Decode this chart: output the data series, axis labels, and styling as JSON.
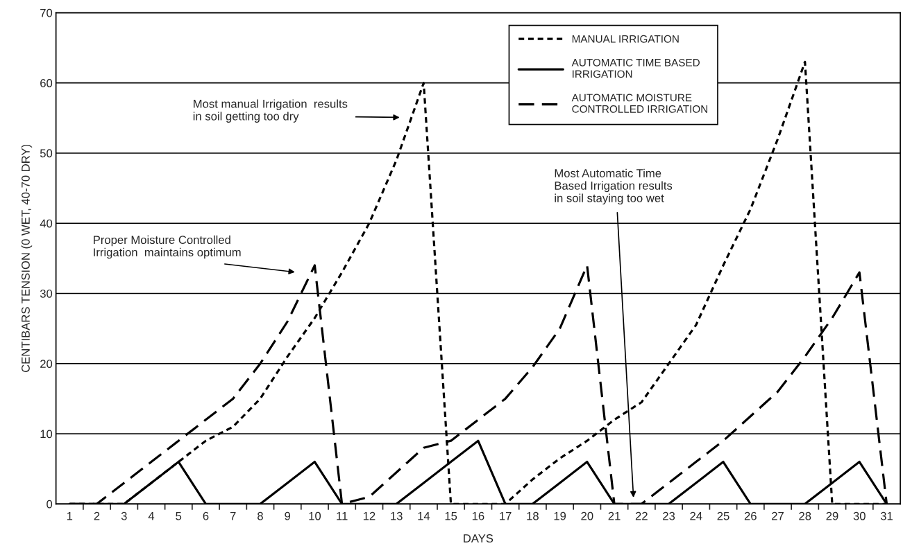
{
  "chart_data": {
    "type": "line",
    "xlabel": "DAYS",
    "ylabel": "CENTIBARS TENSION (0 WET, 40-70 DRY)",
    "categories": [
      "1",
      "2",
      "3",
      "4",
      "5",
      "6",
      "7",
      "8",
      "9",
      "10",
      "11",
      "12",
      "13",
      "14",
      "15",
      "16",
      "17",
      "18",
      "19",
      "20",
      "21",
      "22",
      "23",
      "24",
      "25",
      "26",
      "27",
      "28",
      "29",
      "30",
      "31"
    ],
    "series": [
      {
        "name": "MANUAL IRRIGATION",
        "color": "#000000",
        "line_style": "dotted",
        "values": [
          0,
          0,
          0,
          3,
          6,
          9,
          11,
          15,
          21,
          26.5,
          33,
          40,
          49,
          60,
          0,
          0,
          0,
          3.5,
          6.5,
          9,
          12,
          14.5,
          20,
          25.5,
          34,
          42,
          52,
          63,
          0,
          0,
          0
        ]
      },
      {
        "name": "AUTOMATIC TIME BASED\nIRRIGATION",
        "color": "#000000",
        "line_style": "solid",
        "values": [
          0,
          0,
          0,
          3,
          6,
          0,
          0,
          0,
          3,
          6,
          0,
          0,
          0,
          3,
          6,
          9,
          0,
          0,
          3,
          6,
          0,
          0,
          0,
          3,
          6,
          0,
          0,
          0,
          3,
          6,
          0
        ]
      },
      {
        "name": "AUTOMATIC MOISTURE\nCONTROLLED IRRIGATION",
        "color": "#000000",
        "line_style": "dashed",
        "values": [
          0,
          0,
          3,
          6,
          9,
          12,
          15,
          20,
          26,
          34,
          0,
          1,
          4.5,
          8,
          9,
          12,
          15,
          19.5,
          25,
          34,
          0,
          0,
          3,
          6,
          9,
          12.5,
          16,
          21,
          26.5,
          33,
          0
        ]
      }
    ],
    "ylim": [
      0,
      70
    ],
    "yticks": [
      0,
      10,
      20,
      30,
      40,
      50,
      60,
      70
    ],
    "grid": "y",
    "legend": "top right",
    "annotations": [
      "Most manual Irrigation  results\nin soil getting too dry",
      "Proper Moisture Controlled\nIrrigation  maintains optimum",
      "Most Automatic Time\nBased Irrigation results\nin soil staying too wet"
    ]
  }
}
